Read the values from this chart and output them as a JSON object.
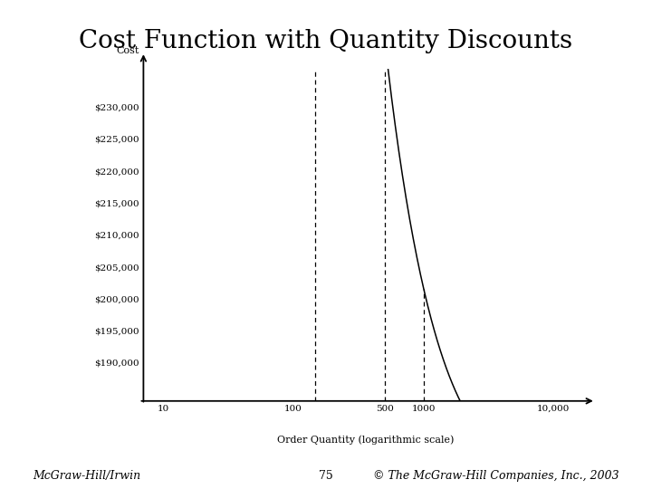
{
  "title": "Cost Function with Quantity Discounts",
  "ylabel": "Cost",
  "xlabel": "Order Quantity (logarithmic scale)",
  "yticks": [
    190000,
    195000,
    200000,
    205000,
    210000,
    215000,
    220000,
    225000,
    230000
  ],
  "ytick_labels": [
    "$190,000",
    "$195,000",
    "$200,000",
    "$205,000",
    "$210,000",
    "$215,000",
    "$220,000",
    "$225,000",
    "$230,000"
  ],
  "xticks": [
    10,
    100,
    500,
    1000,
    10000
  ],
  "xtick_labels": [
    "10",
    "100",
    "500",
    "1000",
    "10,000"
  ],
  "xmin": 7,
  "xmax": 18000,
  "ymin": 187000,
  "ymax": 236000,
  "breakpoint1": 147,
  "breakpoint2": 500,
  "breakpoint3": 1000,
  "footer_left": "McGraw-Hill/Irwin",
  "footer_center": "75",
  "footer_right": "© The McGraw-Hill Companies, Inc., 2003",
  "bg_color": "#ffffff",
  "curve_color": "#000000",
  "title_fontsize": 20,
  "axis_label_fontsize": 8,
  "tick_fontsize": 7.5,
  "footer_fontsize": 9
}
